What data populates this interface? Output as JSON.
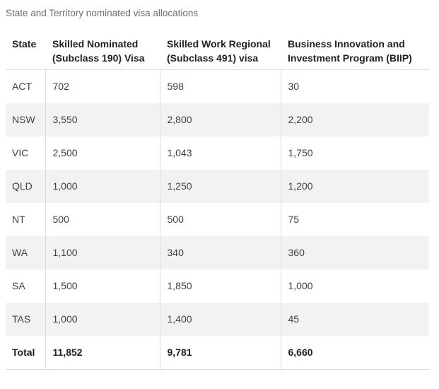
{
  "chart_data": {
    "type": "table",
    "title": "State and Territory nominated visa allocations",
    "columns": [
      "State",
      "Skilled Nominated (Subclass 190) Visa",
      "Skilled Work Regional (Subclass 491) visa",
      "Business Innovation and Investment Program (BIIP)"
    ],
    "rows": [
      [
        "ACT",
        "702",
        "598",
        "30"
      ],
      [
        "NSW",
        "3,550",
        "2,800",
        "2,200"
      ],
      [
        "VIC",
        "2,500",
        "1,043",
        "1,750"
      ],
      [
        "QLD",
        "1,000",
        "1,250",
        "1,200"
      ],
      [
        "NT",
        "500",
        "500",
        "75"
      ],
      [
        "WA",
        "1,100",
        "340",
        "360"
      ],
      [
        "SA",
        "1,500",
        "1,850",
        "1,000"
      ],
      [
        "TAS",
        "1,000",
        "1,400",
        "45"
      ],
      [
        "Total",
        "11,852",
        "9,781",
        "6,660"
      ]
    ],
    "total_row_label": "Total",
    "layout": {
      "zebra_striping": true,
      "first_data_row_background": "white",
      "header_alignment": "top-left"
    }
  },
  "colors": {
    "page_background": "#ffffff",
    "title_text": "#6d6d6d",
    "header_text": "#202124",
    "body_text": "#3f4043",
    "zebra_row_background": "#f2f2f2",
    "border": "#dcdcdc"
  }
}
